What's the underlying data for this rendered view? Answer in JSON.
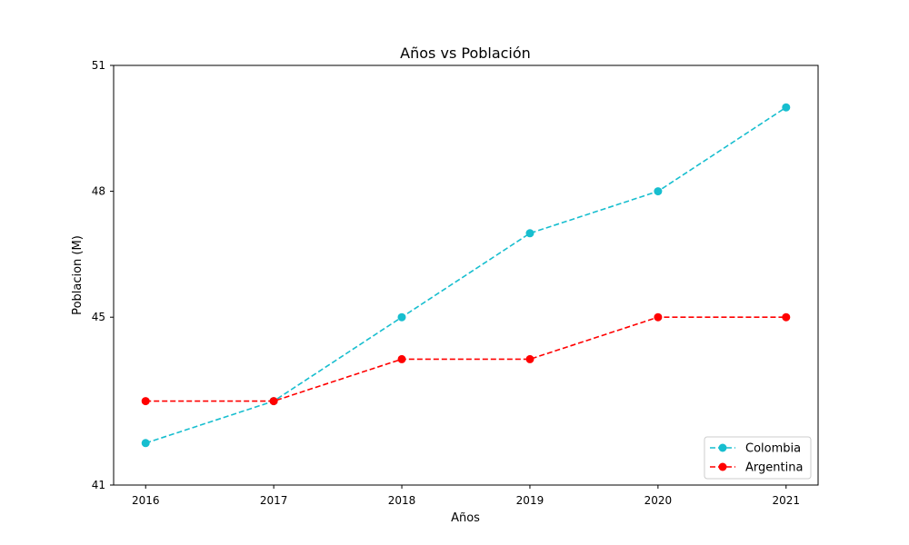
{
  "chart_data": {
    "type": "line",
    "title": "Años vs Población",
    "xlabel": "Años",
    "ylabel": "Poblacion (M)",
    "x": [
      2016,
      2017,
      2018,
      2019,
      2020,
      2021
    ],
    "x_tick_labels": [
      "2016",
      "2017",
      "2018",
      "2019",
      "2020",
      "2021"
    ],
    "y_ticks": [
      41,
      45,
      48,
      51
    ],
    "y_tick_labels": [
      "41",
      "45",
      "48",
      "51"
    ],
    "xlim": [
      2015.75,
      2021.25
    ],
    "ylim": [
      41,
      51
    ],
    "grid": false,
    "legend_position": "lower-right",
    "series": [
      {
        "name": "Colombia",
        "values": [
          42,
          43,
          45,
          47,
          48,
          50
        ],
        "color": "#17becf",
        "line_style": "dashed",
        "marker": "circle"
      },
      {
        "name": "Argentina",
        "values": [
          43,
          43,
          44,
          44,
          45,
          45
        ],
        "color": "#ff0000",
        "line_style": "dashed",
        "marker": "circle"
      }
    ]
  }
}
